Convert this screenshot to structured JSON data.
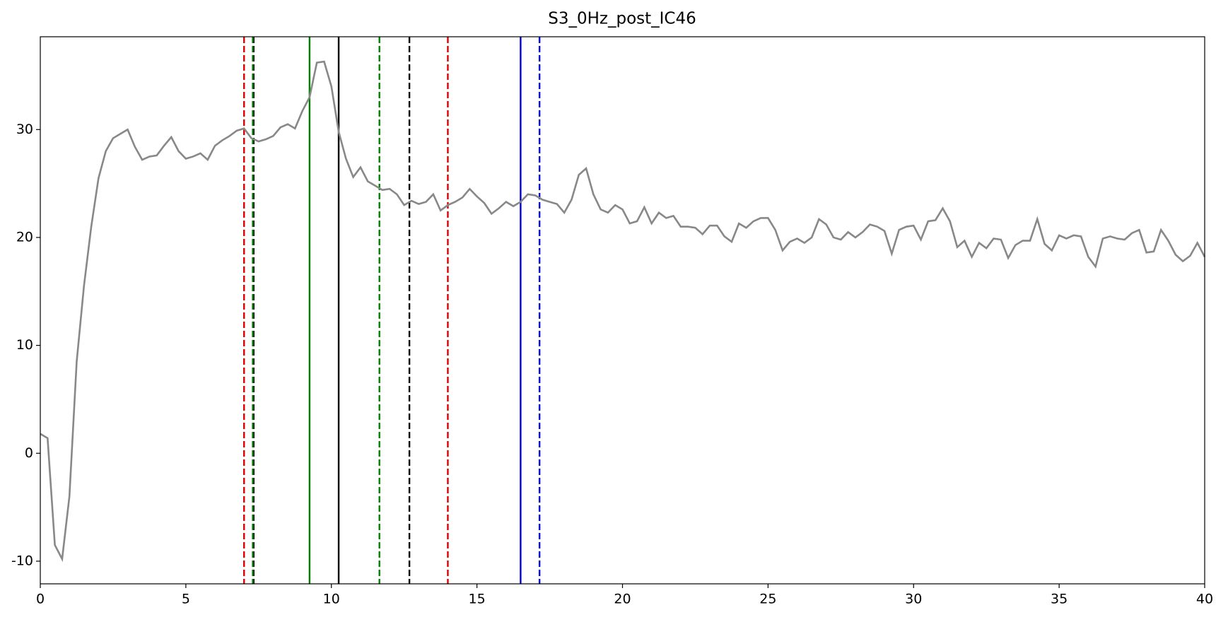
{
  "chart_data": {
    "type": "line",
    "title": "S3_0Hz_post_IC46",
    "x": [
      0,
      0.25,
      0.5,
      0.75,
      1,
      1.25,
      1.5,
      1.75,
      2,
      2.25,
      2.5,
      2.75,
      3,
      3.25,
      3.5,
      3.75,
      4,
      4.25,
      4.5,
      4.75,
      5,
      5.25,
      5.5,
      5.75,
      6,
      6.25,
      6.5,
      6.75,
      7,
      7.25,
      7.5,
      7.75,
      8,
      8.25,
      8.5,
      8.75,
      9,
      9.25,
      9.5,
      9.75,
      10,
      10.25,
      10.5,
      10.75,
      11,
      11.25,
      11.5,
      11.75,
      12,
      12.25,
      12.5,
      12.75,
      13,
      13.25,
      13.5,
      13.75,
      14,
      14.25,
      14.5,
      14.75,
      15,
      15.25,
      15.5,
      15.75,
      16,
      16.25,
      16.5,
      16.75,
      17,
      17.25,
      17.5,
      17.75,
      18,
      18.25,
      18.5,
      18.75,
      19,
      19.25,
      19.5,
      19.75,
      20,
      20.25,
      20.5,
      20.75,
      21,
      21.25,
      21.5,
      21.75,
      22,
      22.25,
      22.5,
      22.75,
      23,
      23.25,
      23.5,
      23.75,
      24,
      24.25,
      24.5,
      24.75,
      25,
      25.25,
      25.5,
      25.75,
      26,
      26.25,
      26.5,
      26.75,
      27,
      27.25,
      27.5,
      27.75,
      28,
      28.25,
      28.5,
      28.75,
      29,
      29.25,
      29.5,
      29.75,
      30,
      30.25,
      30.5,
      30.75,
      31,
      31.25,
      31.5,
      31.75,
      32,
      32.25,
      32.5,
      32.75,
      33,
      33.25,
      33.5,
      33.75,
      34,
      34.25,
      34.5,
      34.75,
      35,
      35.25,
      35.5,
      35.75,
      36,
      36.25,
      36.5,
      36.75,
      37,
      37.25,
      37.5,
      37.75,
      38,
      38.25,
      38.5,
      38.75,
      39,
      39.25,
      39.5,
      39.75,
      40
    ],
    "series": [
      {
        "color": "#888888",
        "values": [
          1.8,
          1.4,
          -8.5,
          -9.8,
          -4,
          8.5,
          15.5,
          21,
          25.5,
          28,
          29.2,
          29.6,
          30,
          28.4,
          27.2,
          27.5,
          27.6,
          28.5,
          29.3,
          28,
          27.3,
          27.5,
          27.8,
          27.2,
          28.5,
          29,
          29.4,
          29.9,
          30.1,
          29.2,
          28.9,
          29.1,
          29.4,
          30.2,
          30.5,
          30.1,
          31.7,
          33,
          36.2,
          36.3,
          34,
          29.8,
          27.3,
          25.6,
          26.5,
          25.2,
          24.8,
          24.4,
          24.5,
          24,
          23,
          23.4,
          23.1,
          23.3,
          24,
          22.5,
          23,
          23.3,
          23.7,
          24.5,
          23.8,
          23.2,
          22.2,
          22.7,
          23.3,
          22.9,
          23.3,
          24,
          23.9,
          23.5,
          23.3,
          23.1,
          22.3,
          23.5,
          25.8,
          26.4,
          24,
          22.6,
          22.3,
          23,
          22.6,
          21.3,
          21.5,
          22.8,
          21.3,
          22.3,
          21.8,
          22,
          21,
          21,
          20.9,
          20.3,
          21.1,
          21.1,
          20.1,
          19.6,
          21.3,
          20.9,
          21.5,
          21.8,
          21.8,
          20.7,
          18.8,
          19.6,
          19.9,
          19.5,
          20,
          21.7,
          21.2,
          20,
          19.8,
          20.5,
          20,
          20.5,
          21.2,
          21,
          20.6,
          18.5,
          20.7,
          21,
          21.1,
          19.8,
          21.5,
          21.6,
          22.7,
          21.5,
          19.1,
          19.7,
          18.2,
          19.5,
          19,
          19.9,
          19.8,
          18.1,
          19.3,
          19.7,
          19.7,
          21.7,
          19.4,
          18.8,
          20.2,
          19.9,
          20.2,
          20.1,
          18.2,
          17.3,
          19.9,
          20.1,
          19.9,
          19.8,
          20.4,
          20.7,
          18.6,
          18.7,
          20.7,
          19.7,
          18.4,
          17.8,
          18.3,
          19.5,
          18.2
        ]
      }
    ],
    "vlines": [
      {
        "x": 7.0,
        "color": "#dd0000",
        "style": "dashed"
      },
      {
        "x": 7.33,
        "color": "#000000",
        "style": "dashed"
      },
      {
        "x": 7.3,
        "color": "#008000",
        "style": "dashed"
      },
      {
        "x": 9.25,
        "color": "#008000",
        "style": "solid"
      },
      {
        "x": 10.25,
        "color": "#000000",
        "style": "solid"
      },
      {
        "x": 11.65,
        "color": "#008000",
        "style": "dashed"
      },
      {
        "x": 12.68,
        "color": "#000000",
        "style": "dashed"
      },
      {
        "x": 14.0,
        "color": "#dd0000",
        "style": "dashed"
      },
      {
        "x": 16.5,
        "color": "#0000cc",
        "style": "solid"
      },
      {
        "x": 17.15,
        "color": "#0000cc",
        "style": "dashed"
      }
    ],
    "xlim": [
      0,
      40
    ],
    "ylim": [
      -12.1,
      38.6
    ],
    "xticks": [
      0,
      5,
      10,
      15,
      20,
      25,
      30,
      35,
      40
    ],
    "yticks": [
      -10,
      0,
      10,
      20,
      30
    ]
  }
}
